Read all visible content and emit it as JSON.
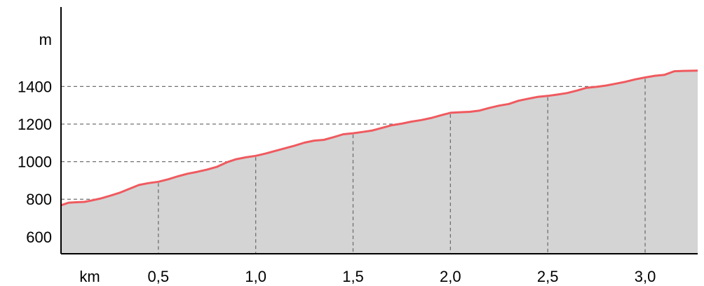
{
  "chart_data": {
    "type": "area",
    "title": "",
    "xlabel": "km",
    "ylabel": "m",
    "xlim": [
      0,
      3.27
    ],
    "ylim": [
      510,
      1860
    ],
    "grid": true,
    "x_ticks": [
      {
        "value": 0.5,
        "label": "0,5"
      },
      {
        "value": 1.0,
        "label": "1,0"
      },
      {
        "value": 1.5,
        "label": "1,5"
      },
      {
        "value": 2.0,
        "label": "2,0"
      },
      {
        "value": 2.5,
        "label": "2,5"
      },
      {
        "value": 3.0,
        "label": "3,0"
      }
    ],
    "y_ticks": [
      {
        "value": 600,
        "label": "600"
      },
      {
        "value": 800,
        "label": "800"
      },
      {
        "value": 1000,
        "label": "1000"
      },
      {
        "value": 1200,
        "label": "1200"
      },
      {
        "value": 1400,
        "label": "1400"
      }
    ],
    "colors": {
      "line": "#ef5a5f",
      "fill": "#d4d4d4",
      "grid": "#707070",
      "axis": "#000000"
    },
    "series": [
      {
        "x": [
          0,
          0.04,
          0.08,
          0.12,
          0.16,
          0.2,
          0.25,
          0.3,
          0.35,
          0.4,
          0.45,
          0.5,
          0.55,
          0.6,
          0.65,
          0.7,
          0.75,
          0.8,
          0.85,
          0.9,
          0.95,
          1.0,
          1.05,
          1.1,
          1.15,
          1.2,
          1.25,
          1.3,
          1.35,
          1.4,
          1.45,
          1.5,
          1.55,
          1.6,
          1.65,
          1.7,
          1.75,
          1.8,
          1.85,
          1.9,
          1.95,
          2.0,
          2.05,
          2.1,
          2.15,
          2.2,
          2.25,
          2.3,
          2.35,
          2.4,
          2.45,
          2.5,
          2.55,
          2.6,
          2.65,
          2.7,
          2.75,
          2.8,
          2.85,
          2.9,
          2.95,
          3.0,
          3.05,
          3.1,
          3.15,
          3.2,
          3.27
        ],
        "y": [
          768,
          782,
          784,
          786,
          794,
          803,
          818,
          834,
          855,
          876,
          886,
          893,
          906,
          922,
          936,
          946,
          958,
          972,
          996,
          1013,
          1023,
          1031,
          1043,
          1057,
          1071,
          1085,
          1101,
          1112,
          1116,
          1130,
          1146,
          1151,
          1158,
          1166,
          1180,
          1194,
          1202,
          1213,
          1221,
          1232,
          1246,
          1260,
          1263,
          1265,
          1272,
          1286,
          1298,
          1307,
          1324,
          1335,
          1345,
          1350,
          1357,
          1365,
          1378,
          1393,
          1398,
          1405,
          1415,
          1425,
          1438,
          1448,
          1457,
          1462,
          1481,
          1483,
          1484
        ]
      }
    ]
  }
}
